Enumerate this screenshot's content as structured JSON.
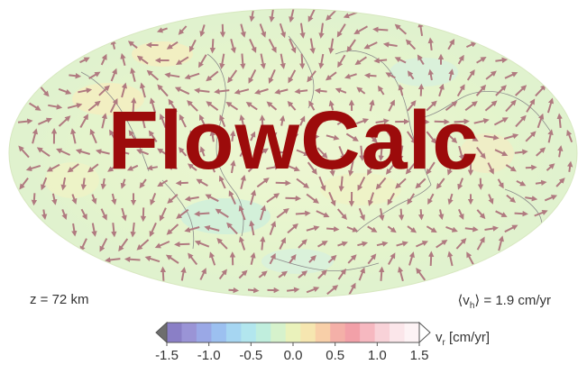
{
  "title": "FlowCalc",
  "depth_label": "z = 72 km",
  "vh_label_prefix": "⟨v",
  "vh_label_sub": "h",
  "vh_label_suffix": "⟩ = 1.9 cm/yr",
  "colorbar": {
    "label_prefix": "v",
    "label_sub": "r",
    "label_suffix": " [cm/yr]",
    "ticks": [
      "-1.5",
      "-1.0",
      "-0.5",
      "0.0",
      "0.5",
      "1.0",
      "1.5"
    ],
    "range": [
      -1.5,
      1.5
    ],
    "colors": [
      "#8a7fc6",
      "#9a94d6",
      "#9aa8e6",
      "#9cc0f0",
      "#a6d6f2",
      "#b2e6ee",
      "#c0eedd",
      "#d6f2cc",
      "#eaf2bb",
      "#f6e6b0",
      "#f8cfa8",
      "#f4b0a8",
      "#f2a0a8",
      "#f6b8c0",
      "#f8d2d8",
      "#fbe6ea",
      "#fdf3f5"
    ],
    "colors_note": ""
  },
  "colors": {
    "title": "#9c0b0b",
    "arrow": "#b07a80",
    "map_fill": "#e6f5cc"
  }
}
